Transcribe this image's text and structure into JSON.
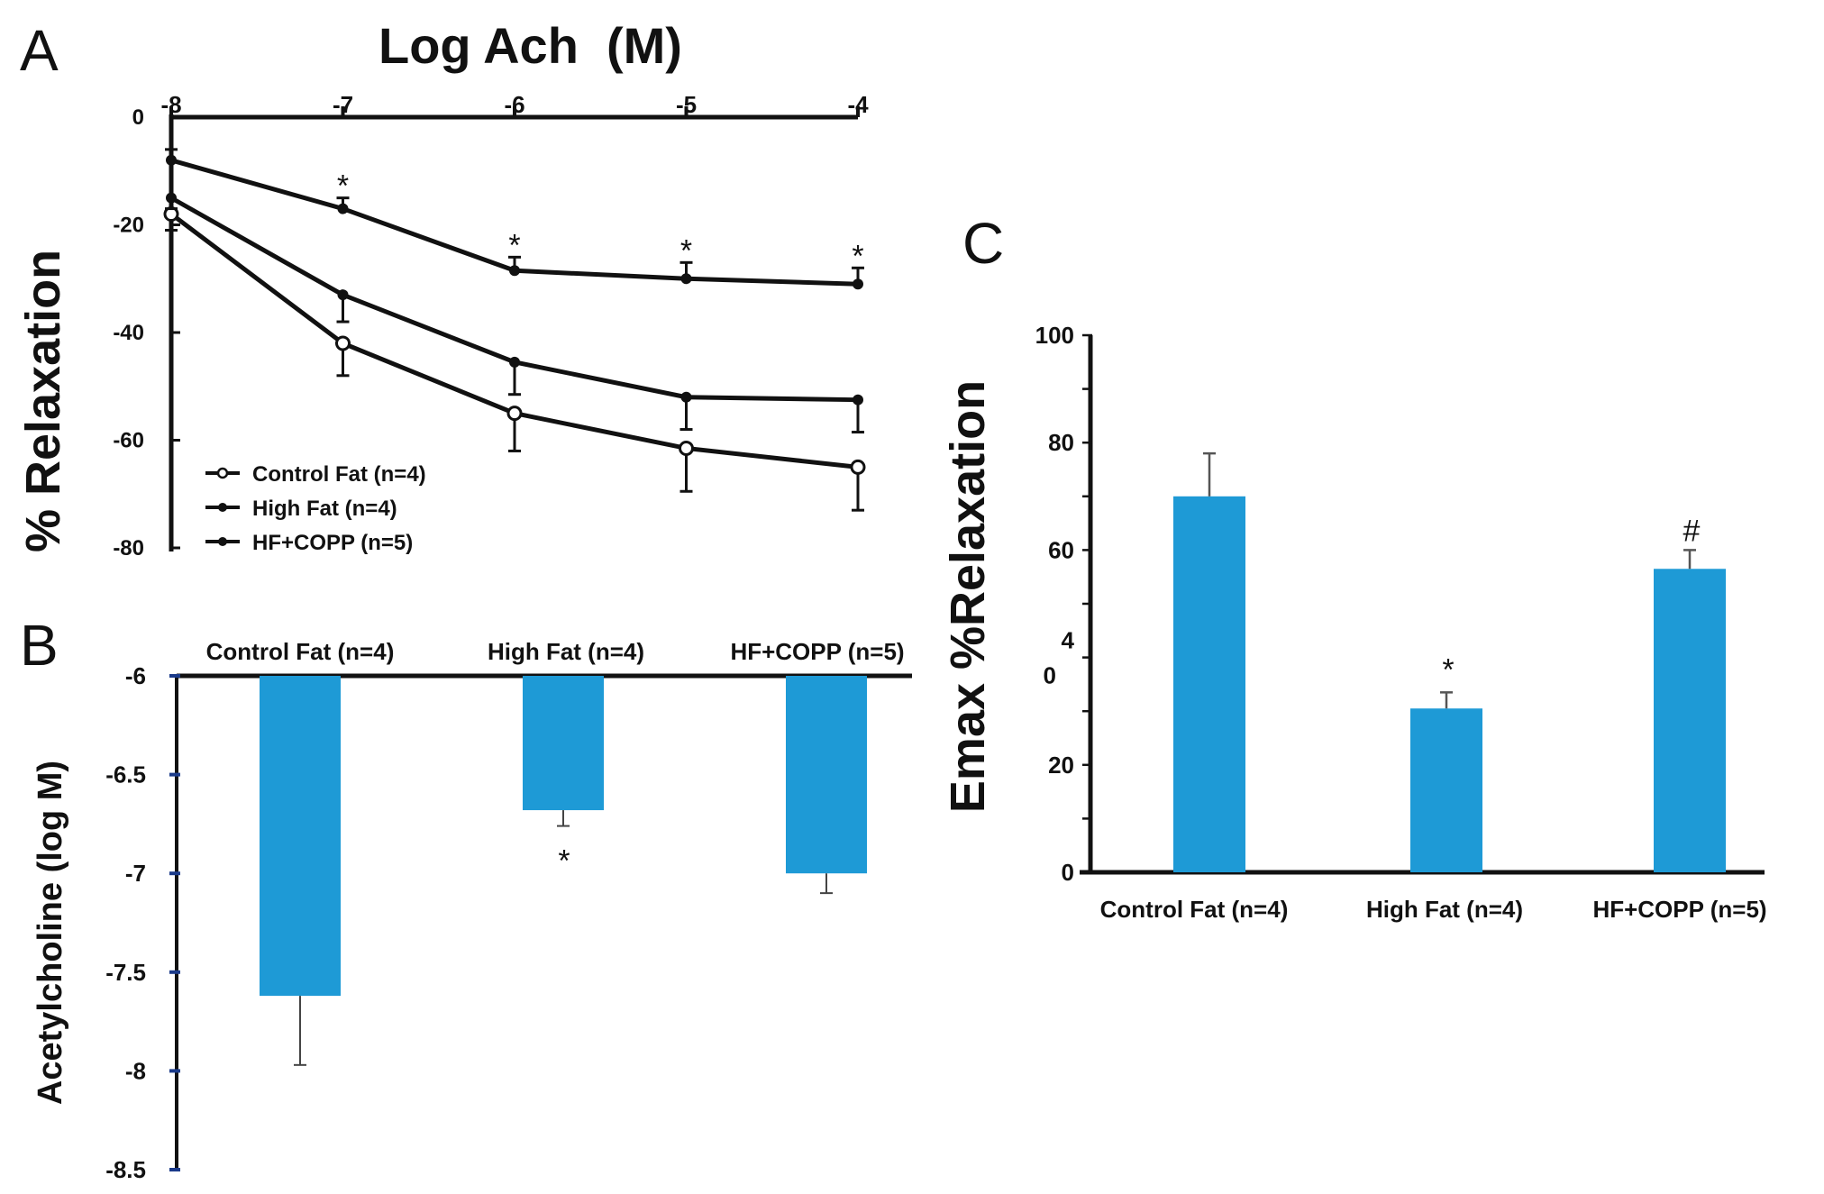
{
  "colors": {
    "bar": "#1e9ad6",
    "line": "#111111",
    "b_tick": "#1a3a8a"
  },
  "panel_a": {
    "letter": "A",
    "chart_data": {
      "type": "line",
      "title": "Log Ach  (M)",
      "xlabel": "Log Ach (M)",
      "ylabel": "% Relaxation",
      "x": [
        -8,
        -7,
        -6,
        -5,
        -4
      ],
      "x_tick_labels": [
        "-8",
        "-7",
        "-6",
        "-5",
        "-4"
      ],
      "y_tick_labels": [
        "0",
        "-20",
        "-40",
        "-60",
        "-80"
      ],
      "xlim": [
        -8,
        -4
      ],
      "ylim": [
        -80,
        0
      ],
      "series": [
        {
          "name": "Control Fat (n=4)",
          "marker": "open-circle",
          "values": [
            -18,
            -42,
            -55,
            -61.5,
            -65
          ],
          "errors": [
            3,
            6,
            7,
            8,
            8
          ]
        },
        {
          "name": "High Fat   (n=4)",
          "marker": "filled-circle",
          "values": [
            -8,
            -17,
            -28.5,
            -30,
            -31
          ],
          "errors": [
            2,
            2,
            2.5,
            3,
            3
          ]
        },
        {
          "name": "HF+COPP (n=5)",
          "marker": "filled-circle",
          "values": [
            -15,
            -33,
            -45.5,
            -52,
            -52.5
          ],
          "errors": [
            2,
            5,
            6,
            6,
            6
          ]
        }
      ],
      "annotations": [
        {
          "x": -7,
          "text": "*"
        },
        {
          "x": -6,
          "text": "*"
        },
        {
          "x": -5,
          "text": "*"
        },
        {
          "x": -4,
          "text": "*"
        }
      ]
    }
  },
  "panel_b": {
    "letter": "B",
    "chart_data": {
      "type": "bar",
      "title": "",
      "xlabel": "",
      "ylabel": "Acetylcholine (log M)",
      "categories": [
        "Control Fat (n=4)",
        "High Fat (n=4)",
        "HF+COPP (n=5)"
      ],
      "values": [
        -7.62,
        -6.68,
        -7.0
      ],
      "errors": [
        0.35,
        0.08,
        0.1
      ],
      "y_tick_labels": [
        "-6",
        "-6.5",
        "-7",
        "-7.5",
        "-8",
        "-8.5"
      ],
      "ylim": [
        -8.5,
        -6
      ],
      "annotations": [
        {
          "category": "High Fat (n=4)",
          "text": "*"
        }
      ]
    }
  },
  "panel_c": {
    "letter": "C",
    "chart_data": {
      "type": "bar",
      "title": "",
      "xlabel": "",
      "ylabel": "Emax %Relaxation",
      "categories": [
        "Control Fat (n=4)",
        "High Fat (n=4)",
        "HF+COPP (n=5)"
      ],
      "values": [
        70,
        30.5,
        56.5
      ],
      "errors": [
        8,
        3,
        3.5
      ],
      "y_tick_labels": [
        "0",
        "20",
        "4\n0",
        "60",
        "80",
        "100"
      ],
      "ylim": [
        0,
        100
      ],
      "annotations": [
        {
          "category": "High Fat (n=4)",
          "text": "*"
        },
        {
          "category": "HF+COPP (n=5)",
          "text": "#"
        }
      ]
    }
  }
}
